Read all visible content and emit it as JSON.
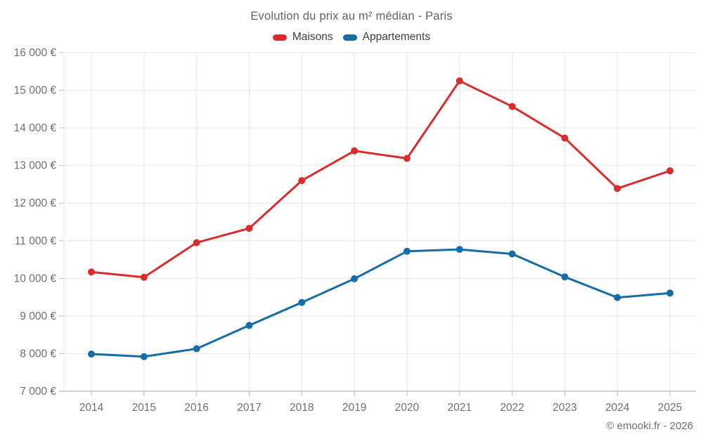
{
  "title": "Evolution du prix au m² médian - Paris",
  "footer": "© emooki.fr - 2026",
  "colors": {
    "maisons": "#d92c2c",
    "appartements": "#166da4",
    "grid": "#ebebeb",
    "axis": "#b9b9b9",
    "tick_text": "#6f6f6f",
    "title_text": "#636363",
    "legend_text": "#3d3d3d"
  },
  "chart_data": {
    "type": "line",
    "x": [
      2014,
      2015,
      2016,
      2017,
      2018,
      2019,
      2020,
      2021,
      2022,
      2023,
      2024,
      2025
    ],
    "series": [
      {
        "name": "Maisons",
        "color_key": "maisons",
        "values": [
          10170,
          10030,
          10950,
          11330,
          12600,
          13390,
          13190,
          15250,
          14570,
          13730,
          12390,
          12860
        ]
      },
      {
        "name": "Appartements",
        "color_key": "appartements",
        "values": [
          7990,
          7920,
          8130,
          8750,
          9360,
          9990,
          10720,
          10770,
          10650,
          10040,
          9490,
          9610
        ]
      }
    ],
    "ylim": [
      7000,
      16000
    ],
    "ytick_step": 1000,
    "ytick_suffix": " €",
    "grid": true,
    "legend_position": "top",
    "xlabel": "",
    "ylabel": ""
  }
}
